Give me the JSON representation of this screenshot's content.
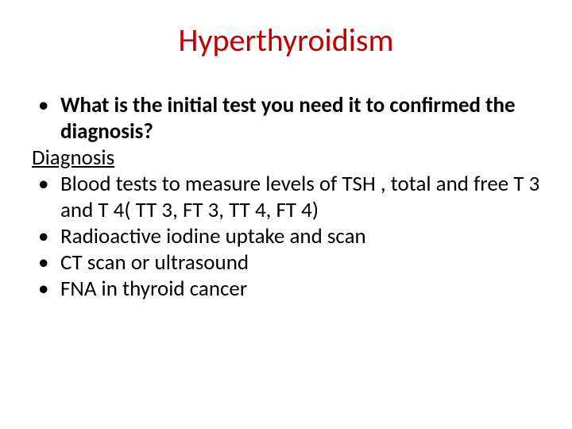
{
  "title": {
    "text": "Hyperthyroidism",
    "color": "#c00000",
    "fontsize": 40
  },
  "content": {
    "color": "#000000",
    "fontsize": 27,
    "items": [
      {
        "type": "bullet",
        "bold": true,
        "text": "What is the initial test you need it to confirmed the diagnosis?"
      },
      {
        "type": "underline",
        "bold": false,
        "text": "Diagnosis"
      },
      {
        "type": "bullet",
        "bold": false,
        "text": "Blood tests to measure levels of TSH , total and free T 3   and T 4( TT 3, FT 3, TT 4, FT 4)"
      },
      {
        "type": "bullet",
        "bold": false,
        "text": "Radioactive iodine uptake and scan"
      },
      {
        "type": "bullet",
        "bold": false,
        "text": "CT scan or ultrasound"
      },
      {
        "type": "bullet",
        "bold": false,
        "text": "FNA in thyroid cancer"
      }
    ]
  },
  "background_color": "#ffffff",
  "bullet_char": "•"
}
